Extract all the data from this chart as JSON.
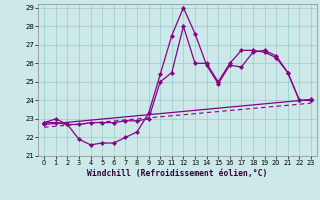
{
  "xlabel": "Windchill (Refroidissement éolien,°C)",
  "xlim": [
    -0.5,
    23.5
  ],
  "ylim": [
    21,
    29.2
  ],
  "yticks": [
    21,
    22,
    23,
    24,
    25,
    26,
    27,
    28,
    29
  ],
  "xticks": [
    0,
    1,
    2,
    3,
    4,
    5,
    6,
    7,
    8,
    9,
    10,
    11,
    12,
    13,
    14,
    15,
    16,
    17,
    18,
    19,
    20,
    21,
    22,
    23
  ],
  "bg_color": "#cce8e8",
  "line_color": "#880088",
  "grid_color": "#99cccc",
  "line0_x": [
    0,
    1,
    2,
    3,
    4,
    5,
    6,
    7,
    8,
    9,
    10,
    11,
    12,
    13,
    14,
    15,
    16,
    17,
    18,
    19,
    20,
    21,
    22,
    23
  ],
  "line0_y": [
    22.8,
    22.8,
    22.7,
    21.9,
    21.6,
    21.7,
    21.7,
    22.0,
    22.3,
    23.3,
    25.4,
    27.5,
    29.0,
    27.6,
    25.9,
    24.9,
    25.9,
    25.8,
    26.6,
    26.7,
    26.4,
    25.5,
    24.0,
    24.0
  ],
  "line1_x": [
    0,
    1,
    2,
    3,
    4,
    5,
    6,
    7,
    8,
    9,
    10,
    11,
    12,
    13,
    14,
    15,
    16,
    17,
    18,
    19,
    20,
    21,
    22,
    23
  ],
  "line1_y": [
    22.8,
    23.0,
    22.7,
    22.7,
    22.8,
    22.8,
    22.8,
    22.9,
    22.9,
    23.0,
    25.0,
    25.5,
    28.0,
    26.0,
    26.0,
    25.0,
    26.0,
    26.7,
    26.7,
    26.6,
    26.3,
    25.5,
    24.0,
    24.0
  ],
  "line2_x": [
    0,
    23
  ],
  "line2_y": [
    22.7,
    24.05
  ],
  "line3_x": [
    0,
    23
  ],
  "line3_y": [
    22.55,
    23.85
  ]
}
